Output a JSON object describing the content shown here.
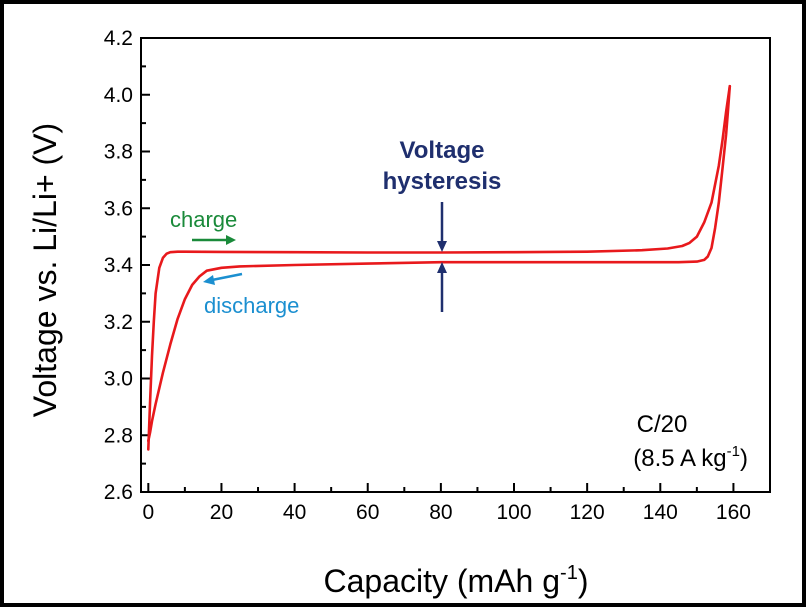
{
  "chart_data": {
    "type": "line",
    "title": "",
    "xlabel": "Capacity (mAh g",
    "xlabel_sup": "-1",
    "xlabel_end": ")",
    "ylabel": "Voltage vs. Li/Li+ (V)",
    "xlim": [
      -2,
      170
    ],
    "ylim": [
      2.6,
      4.2
    ],
    "xticks": [
      0,
      20,
      40,
      60,
      80,
      100,
      120,
      140,
      160
    ],
    "yticks": [
      "2.6",
      "2.8",
      "3.0",
      "3.2",
      "3.4",
      "3.6",
      "3.8",
      "4.0",
      "4.2"
    ],
    "grid": false,
    "series": [
      {
        "color": "#e8191c",
        "x": [
          0,
          0.5,
          1,
          1.5,
          2,
          3,
          4,
          5,
          6,
          8,
          10,
          20,
          40,
          60,
          80,
          100,
          120,
          135,
          142,
          146,
          148,
          150,
          152,
          154,
          156,
          157,
          158,
          159
        ],
        "y": [
          2.75,
          2.92,
          3.08,
          3.2,
          3.3,
          3.39,
          3.425,
          3.44,
          3.445,
          3.447,
          3.447,
          3.446,
          3.445,
          3.444,
          3.444,
          3.445,
          3.447,
          3.452,
          3.458,
          3.467,
          3.478,
          3.5,
          3.55,
          3.62,
          3.75,
          3.84,
          3.94,
          4.03
        ]
      },
      {
        "color": "#e8191c",
        "x": [
          159,
          158.5,
          158,
          157,
          156,
          155,
          154,
          153,
          152,
          150,
          145,
          135,
          120,
          100,
          80,
          60,
          40,
          25,
          20,
          16,
          14,
          12,
          10,
          8,
          6,
          4,
          2,
          1,
          0.5,
          0
        ],
        "y": [
          4.03,
          3.94,
          3.86,
          3.74,
          3.62,
          3.53,
          3.46,
          3.43,
          3.418,
          3.412,
          3.41,
          3.41,
          3.41,
          3.41,
          3.41,
          3.405,
          3.4,
          3.395,
          3.39,
          3.38,
          3.36,
          3.33,
          3.28,
          3.21,
          3.12,
          3.02,
          2.91,
          2.85,
          2.81,
          2.78
        ]
      }
    ],
    "annotations": {
      "charge_label": "charge",
      "charge_color": "#1a8a3a",
      "discharge_label": "discharge",
      "discharge_color": "#1b8fd0",
      "hysteresis_line1": "Voltage",
      "hysteresis_line2": "hysteresis",
      "hysteresis_color": "#1f2f6e",
      "rate_line1": "C/20",
      "rate_line2_prefix": "(8.5 A kg",
      "rate_line2_sup": "-1",
      "rate_line2_suffix": ")"
    }
  }
}
